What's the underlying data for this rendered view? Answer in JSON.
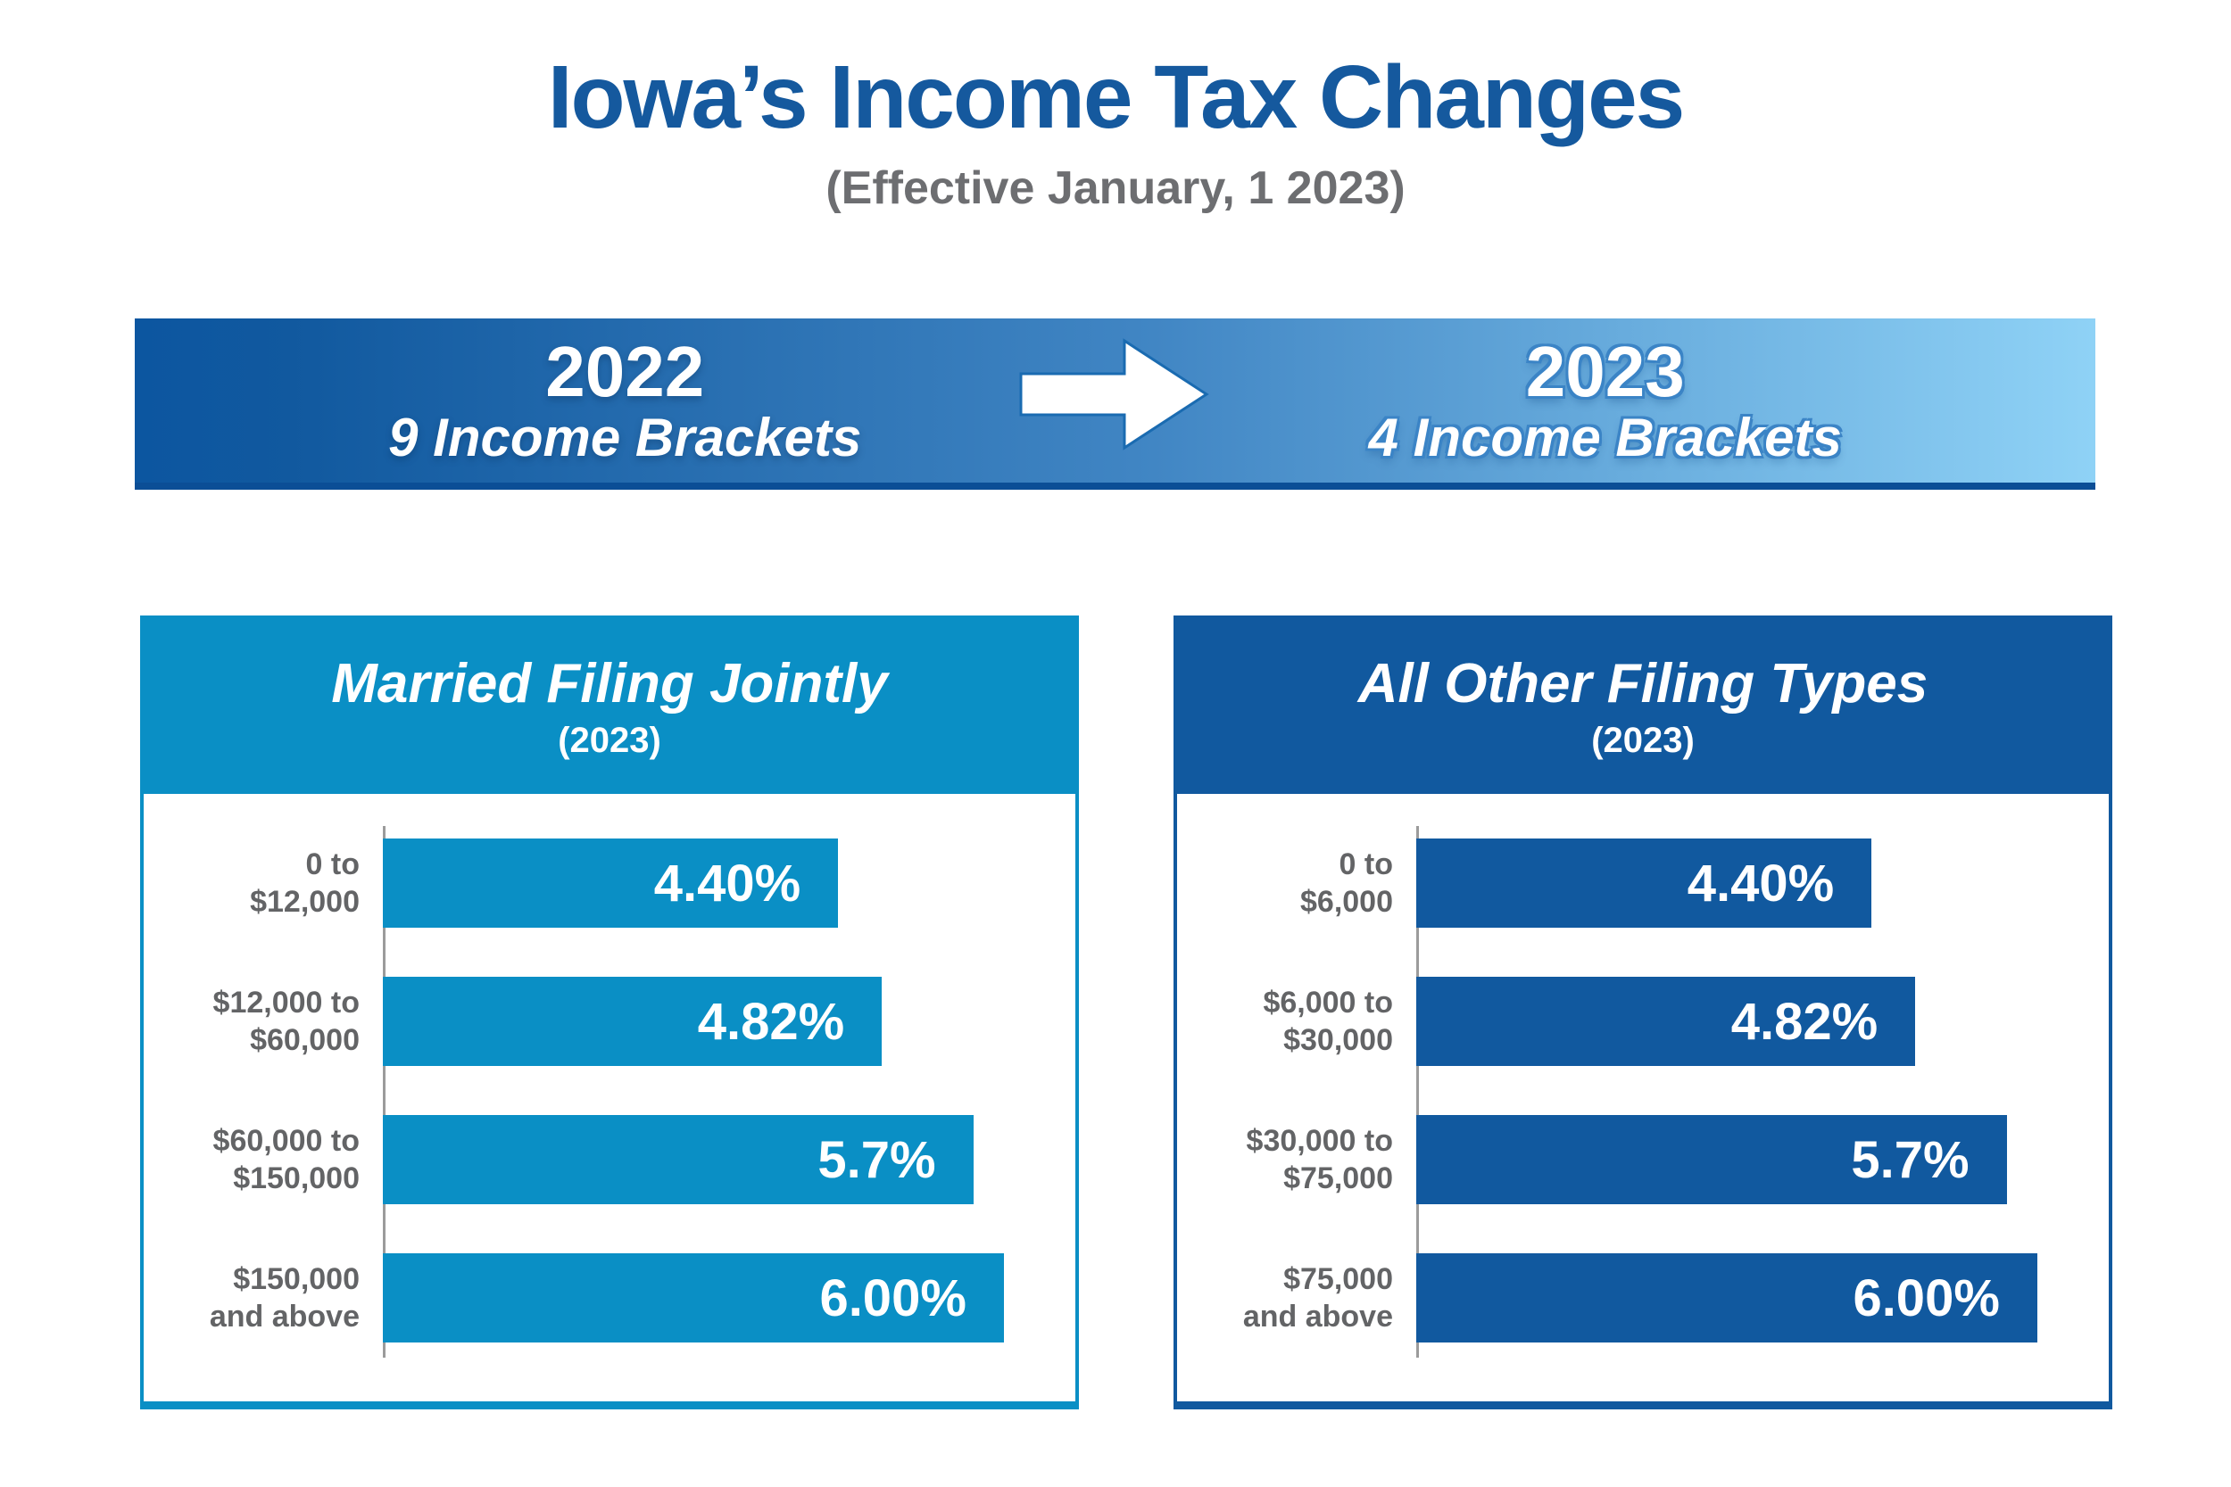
{
  "title": "Iowa’s Income Tax Changes",
  "subtitle": "(Effective January, 1 2023)",
  "banner": {
    "left": {
      "year": "2022",
      "label": "9 Income Brackets"
    },
    "right": {
      "year": "2023",
      "label": "4 Income Brackets"
    },
    "arrow_icon": "right-arrow",
    "gradient_start": "#0c56a0",
    "gradient_end": "#8fd2f6",
    "bottom_edge_color": "#0b4e96"
  },
  "colors": {
    "title_blue": "#15599e",
    "subtitle_gray": "#6d6e71",
    "label_gray": "#636466",
    "axis_gray": "#9b9b9b",
    "light_accent": "#0a8fc5",
    "dark_accent": "#11599f"
  },
  "chart_data": [
    {
      "type": "bar",
      "orientation": "horizontal",
      "title": "Married Filing Jointly",
      "subtitle": "(2023)",
      "categories": [
        [
          "0 to",
          "$12,000"
        ],
        [
          "$12,000 to",
          "$60,000"
        ],
        [
          "$60,000 to",
          "$150,000"
        ],
        [
          "$150,000",
          "and above"
        ]
      ],
      "values": [
        4.4,
        4.82,
        5.7,
        6.0
      ],
      "value_labels": [
        "4.40%",
        "4.82%",
        "5.7%",
        "6.00%"
      ],
      "xlim": [
        0,
        6.3
      ],
      "grid": false,
      "bar_color": "#0a8fc5",
      "accent": "#0a8fc5"
    },
    {
      "type": "bar",
      "orientation": "horizontal",
      "title": "All Other Filing Types",
      "subtitle": "(2023)",
      "categories": [
        [
          "0 to",
          "$6,000"
        ],
        [
          "$6,000 to",
          "$30,000"
        ],
        [
          "$30,000 to",
          "$75,000"
        ],
        [
          "$75,000",
          "and above"
        ]
      ],
      "values": [
        4.4,
        4.82,
        5.7,
        6.0
      ],
      "value_labels": [
        "4.40%",
        "4.82%",
        "5.7%",
        "6.00%"
      ],
      "xlim": [
        0,
        6.3
      ],
      "grid": false,
      "bar_color": "#11599f",
      "accent": "#11599f"
    }
  ]
}
